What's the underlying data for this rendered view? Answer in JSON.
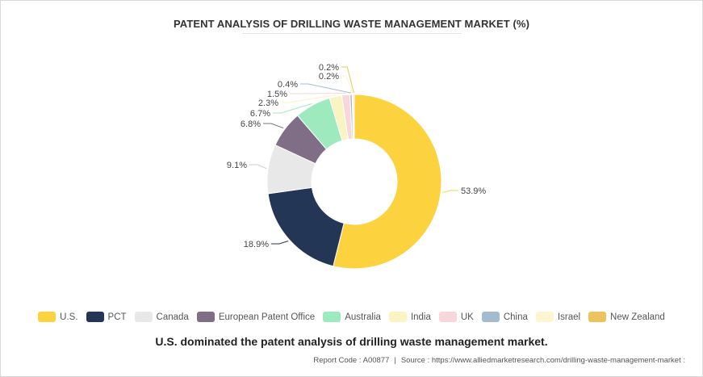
{
  "title": "PATENT ANALYSIS OF DRILLING WASTE MANAGEMENT MARKET (%)",
  "subtitle": "U.S. dominated the patent analysis of drilling waste management market.",
  "footer": {
    "report_code": "Report Code : A00877",
    "separator": "|",
    "source": "Source : https://www.alliedmarketresearch.com/drilling-waste-management-market :"
  },
  "chart_data": {
    "type": "pie",
    "donut": true,
    "legend_position": "bottom",
    "categories": [
      "U.S.",
      "PCT",
      "Canada",
      "European Patent Office",
      "Australia",
      "India",
      "UK",
      "China",
      "Israel",
      "New Zealand"
    ],
    "values": [
      53.9,
      18.9,
      9.1,
      6.8,
      6.7,
      2.3,
      1.5,
      0.4,
      0.2,
      0.2
    ],
    "data_labels": [
      "53.9%",
      "18.9%",
      "9.1%",
      "6.8%",
      "6.7%",
      "2.3%",
      "1.5%",
      "0.4%",
      "0.2%",
      "0.2%"
    ],
    "colors": [
      "#FDD23F",
      "#233656",
      "#E8E8E8",
      "#7F6E85",
      "#9EEABF",
      "#FAF3C2",
      "#F8D6DA",
      "#A4BCD0",
      "#FCF5CF",
      "#EDC35D"
    ]
  }
}
